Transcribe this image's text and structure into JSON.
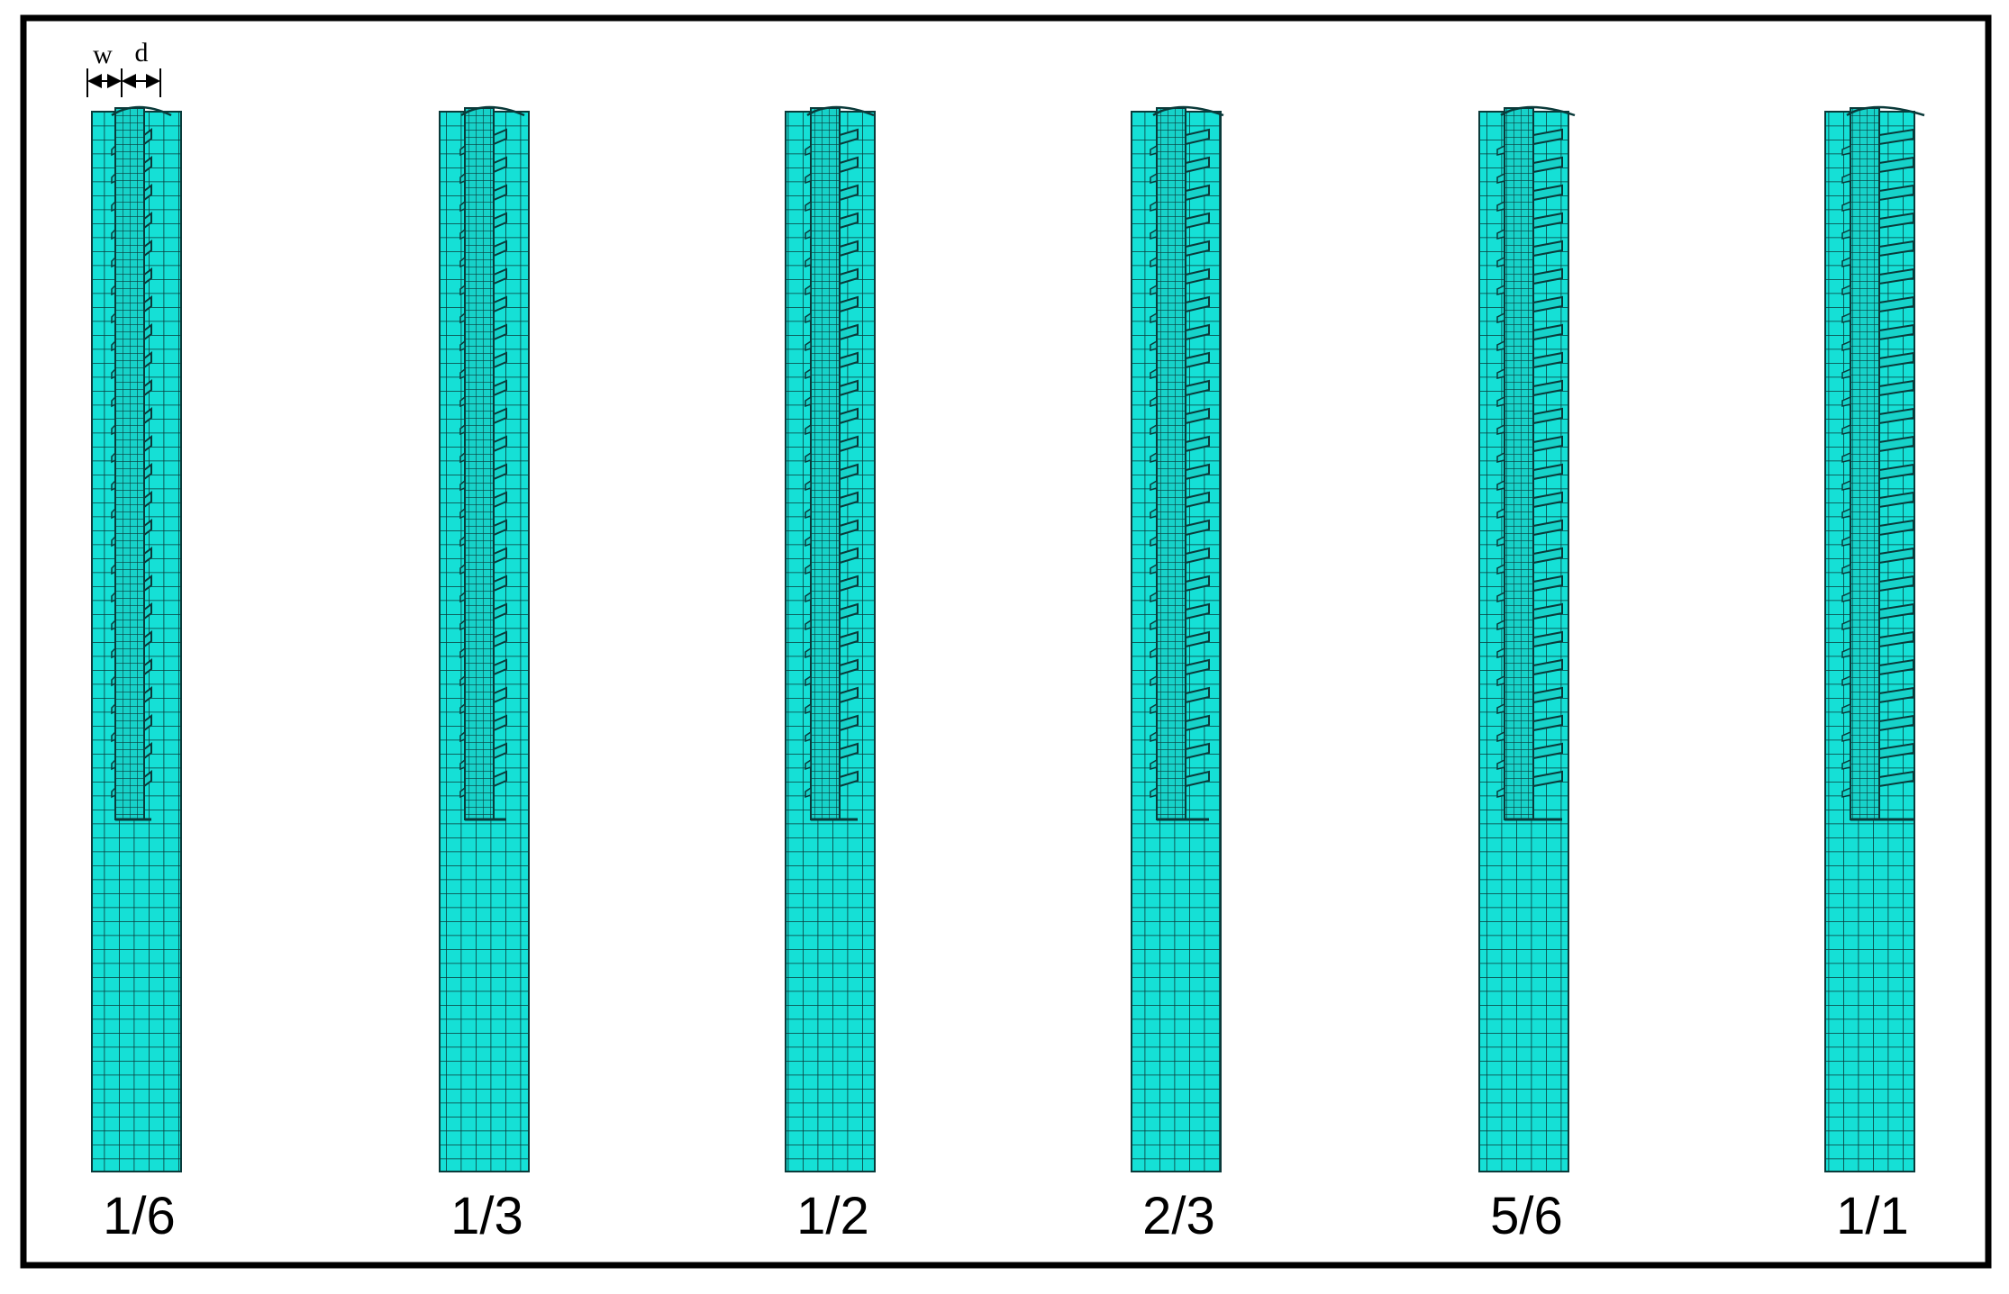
{
  "annotations": {
    "w": "w",
    "d": "d"
  },
  "panels": [
    {
      "label": "1/6"
    },
    {
      "label": "1/3"
    },
    {
      "label": "1/2"
    },
    {
      "label": "2/3"
    },
    {
      "label": "5/6"
    },
    {
      "label": "1/1"
    }
  ]
}
